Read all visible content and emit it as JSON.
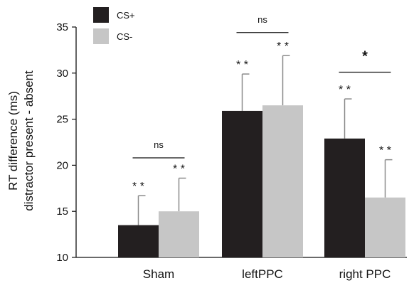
{
  "chart_data": {
    "type": "bar",
    "categories": [
      "Sham",
      "leftPPC",
      "right PPC"
    ],
    "series": [
      {
        "name": "CS+",
        "color": "#231f20",
        "values": [
          13.5,
          25.9,
          22.9
        ],
        "errors": [
          3.2,
          4.0,
          4.3
        ],
        "bar_labels": [
          "* *",
          "* *",
          "* *"
        ]
      },
      {
        "name": "CS-",
        "color": "#c6c6c6",
        "values": [
          15.0,
          26.5,
          16.5
        ],
        "errors": [
          3.6,
          5.4,
          4.1
        ],
        "bar_labels": [
          "* *",
          "* *",
          "* *"
        ]
      }
    ],
    "ylabel_line1": "RT difference (ms)",
    "ylabel_line2": "distractor present - absent",
    "ylim": [
      10,
      35
    ],
    "yticks": [
      "10",
      "15",
      "20",
      "25",
      "30",
      "35"
    ],
    "legend": {
      "placement": "top-left"
    },
    "significance": [
      {
        "category": "Sham",
        "label": "ns",
        "y": 20.8
      },
      {
        "category": "leftPPC",
        "label": "ns",
        "y": 34.4
      },
      {
        "category": "right PPC",
        "label": "*",
        "y": 30.1
      }
    ],
    "error_bar_color": "#8a8a8a"
  }
}
